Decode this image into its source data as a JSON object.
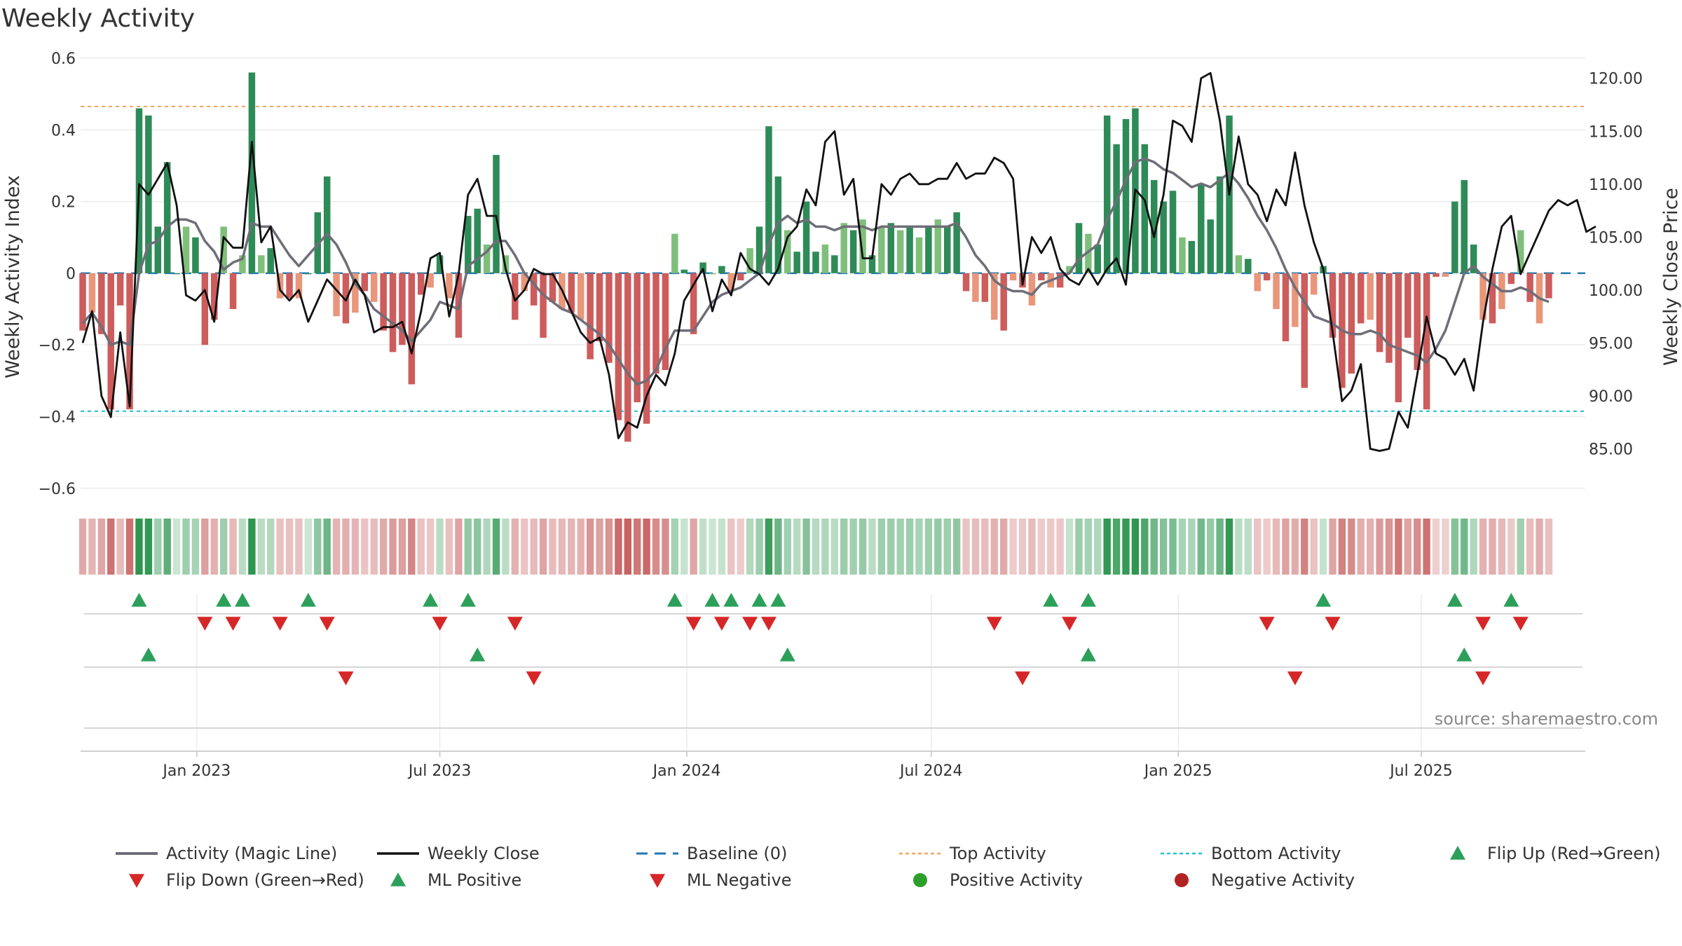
{
  "chart_data": {
    "type": "bar",
    "title": "Weekly Activity",
    "ylabel_left": "Weekly Activity Index",
    "ylabel_right": "Weekly Close Price",
    "ylim_left": [
      -0.62,
      0.6
    ],
    "ylim_right": [
      80.6,
      121.9
    ],
    "left_ticks": [
      "0.6",
      "0.4",
      "0.2",
      "0",
      "−0.2",
      "−0.4",
      "−0.6"
    ],
    "right_ticks": [
      "120.00",
      "115.00",
      "110.00",
      "105.00",
      "100.00",
      "95.00",
      "90.00",
      "85.00"
    ],
    "x_ticks": [
      "Jan 2023",
      "Jul 2023",
      "Jan 2024",
      "Jul 2024",
      "Jan 2025",
      "Jul 2025"
    ],
    "start_week": "2022-10-08",
    "top_activity": 0.465,
    "bottom_activity": -0.385,
    "baseline": 0,
    "activity": [
      -0.16,
      -0.11,
      -0.17,
      -0.38,
      -0.09,
      -0.38,
      0.46,
      0.44,
      0.13,
      0.31,
      0.0,
      0.13,
      0.1,
      -0.2,
      -0.13,
      0.13,
      -0.1,
      0.05,
      0.56,
      0.05,
      0.07,
      -0.07,
      -0.07,
      -0.07,
      0.0,
      0.17,
      0.27,
      -0.12,
      -0.14,
      -0.11,
      -0.05,
      -0.08,
      -0.16,
      -0.22,
      -0.2,
      -0.31,
      -0.06,
      -0.04,
      0.05,
      -0.07,
      -0.18,
      0.16,
      0.18,
      0.08,
      0.33,
      0.05,
      -0.13,
      -0.05,
      -0.09,
      -0.18,
      -0.08,
      -0.1,
      -0.11,
      -0.13,
      -0.24,
      -0.19,
      -0.25,
      -0.41,
      -0.47,
      -0.36,
      -0.42,
      -0.28,
      -0.27,
      0.11,
      0.01,
      -0.17,
      0.03,
      0.0,
      0.02,
      -0.05,
      -0.02,
      0.07,
      0.13,
      0.41,
      0.27,
      0.12,
      0.06,
      0.2,
      0.06,
      0.08,
      0.05,
      0.14,
      0.12,
      0.15,
      0.05,
      0.13,
      0.14,
      0.12,
      0.13,
      0.1,
      0.13,
      0.15,
      0.13,
      0.17,
      -0.05,
      -0.08,
      -0.08,
      -0.13,
      -0.16,
      -0.02,
      -0.04,
      -0.09,
      -0.02,
      -0.04,
      -0.04,
      0.02,
      0.14,
      0.11,
      0.08,
      0.44,
      0.36,
      0.43,
      0.46,
      0.36,
      0.26,
      0.2,
      0.23,
      0.1,
      0.09,
      0.25,
      0.15,
      0.27,
      0.44,
      0.05,
      0.04,
      -0.05,
      -0.02,
      -0.1,
      -0.19,
      -0.15,
      -0.32,
      -0.06,
      0.02,
      -0.18,
      -0.32,
      -0.28,
      -0.14,
      -0.13,
      -0.22,
      -0.25,
      -0.36,
      -0.18,
      -0.27,
      -0.38,
      -0.01,
      -0.01,
      0.2,
      0.26,
      0.08,
      -0.13,
      -0.14,
      -0.1,
      -0.03,
      0.12,
      -0.08,
      -0.14,
      -0.07
    ],
    "magic_line": [
      -0.14,
      -0.11,
      -0.15,
      -0.2,
      -0.19,
      -0.2,
      0.0,
      0.08,
      0.09,
      0.13,
      0.15,
      0.15,
      0.14,
      0.09,
      0.06,
      0.01,
      0.03,
      0.04,
      0.14,
      0.13,
      0.13,
      0.09,
      0.05,
      0.02,
      0.05,
      0.08,
      0.11,
      0.08,
      0.03,
      -0.03,
      -0.06,
      -0.1,
      -0.12,
      -0.14,
      -0.16,
      -0.19,
      -0.16,
      -0.13,
      -0.08,
      -0.09,
      -0.1,
      0.02,
      0.04,
      0.06,
      0.09,
      0.09,
      0.05,
      0.0,
      -0.03,
      -0.06,
      -0.08,
      -0.1,
      -0.11,
      -0.13,
      -0.15,
      -0.17,
      -0.2,
      -0.24,
      -0.28,
      -0.31,
      -0.3,
      -0.27,
      -0.21,
      -0.16,
      -0.16,
      -0.16,
      -0.12,
      -0.08,
      -0.06,
      -0.05,
      -0.04,
      -0.02,
      0.0,
      0.08,
      0.14,
      0.16,
      0.14,
      0.15,
      0.13,
      0.13,
      0.12,
      0.13,
      0.13,
      0.13,
      0.12,
      0.13,
      0.13,
      0.13,
      0.13,
      0.13,
      0.13,
      0.13,
      0.13,
      0.14,
      0.1,
      0.05,
      0.02,
      -0.02,
      -0.04,
      -0.05,
      -0.05,
      -0.06,
      -0.03,
      -0.02,
      -0.01,
      0.0,
      0.04,
      0.06,
      0.08,
      0.15,
      0.2,
      0.26,
      0.31,
      0.32,
      0.31,
      0.29,
      0.28,
      0.26,
      0.24,
      0.25,
      0.24,
      0.26,
      0.28,
      0.25,
      0.21,
      0.16,
      0.12,
      0.07,
      0.01,
      -0.04,
      -0.08,
      -0.12,
      -0.13,
      -0.14,
      -0.16,
      -0.17,
      -0.17,
      -0.16,
      -0.17,
      -0.2,
      -0.21,
      -0.22,
      -0.23,
      -0.25,
      -0.21,
      -0.16,
      -0.08,
      0.0,
      0.02,
      -0.01,
      -0.03,
      -0.05,
      -0.05,
      -0.04,
      -0.05,
      -0.07,
      -0.08
    ],
    "weekly_close": [
      95.0,
      98.0,
      90.0,
      88.0,
      96.0,
      89.0,
      110.0,
      109.0,
      110.5,
      112.0,
      108.0,
      99.5,
      99.0,
      100.0,
      97.0,
      105.0,
      104.0,
      104.0,
      114.0,
      104.5,
      106.0,
      100.0,
      99.0,
      100.0,
      97.0,
      99.0,
      101.0,
      100.0,
      99.0,
      101.0,
      99.5,
      96.0,
      96.5,
      96.5,
      97.0,
      94.0,
      98.0,
      103.0,
      103.5,
      97.5,
      101.5,
      109.0,
      110.5,
      107.0,
      107.0,
      102.0,
      99.0,
      100.0,
      102.0,
      101.5,
      101.5,
      100.0,
      98.0,
      96.0,
      95.0,
      95.5,
      92.0,
      86.0,
      87.5,
      87.0,
      90.0,
      92.0,
      91.0,
      94.0,
      99.0,
      100.5,
      102.0,
      98.0,
      101.0,
      99.5,
      103.5,
      102.0,
      101.5,
      100.5,
      102.0,
      105.0,
      106.0,
      109.5,
      108.0,
      114.0,
      115.0,
      109.0,
      110.5,
      103.0,
      103.0,
      110.0,
      109.0,
      110.5,
      111.0,
      110.0,
      110.0,
      110.5,
      110.5,
      112.0,
      110.5,
      111.0,
      111.0,
      112.5,
      112.0,
      110.5,
      100.5,
      105.0,
      103.5,
      105.0,
      102.0,
      101.0,
      100.5,
      102.0,
      100.5,
      102.0,
      103.0,
      100.5,
      109.5,
      108.5,
      105.0,
      109.0,
      116.0,
      115.5,
      114.0,
      120.0,
      120.5,
      116.0,
      109.0,
      114.5,
      110.0,
      109.0,
      106.5,
      109.5,
      108.0,
      113.0,
      108.0,
      104.5,
      102.0,
      96.0,
      89.5,
      90.5,
      93.0,
      85.0,
      84.8,
      85.0,
      88.5,
      87.0,
      92.0,
      97.5,
      94.0,
      93.5,
      92.0,
      93.5,
      90.5,
      97.0,
      102.0,
      106.0,
      107.0,
      101.5,
      103.5,
      105.5,
      107.5,
      108.5,
      108.0,
      108.5,
      105.5,
      106.0
    ],
    "heat_strip_values": "same as activity",
    "flip_up_weeks": [
      6,
      15,
      17,
      24,
      37,
      41,
      63,
      67,
      69,
      72,
      74,
      103,
      107,
      132,
      146,
      152
    ],
    "flip_down_weeks": [
      13,
      16,
      21,
      26,
      38,
      46,
      65,
      68,
      71,
      73,
      97,
      105,
      126,
      133,
      149,
      153
    ],
    "ml_positive_weeks": [
      7,
      42,
      75,
      107,
      147
    ],
    "ml_negative_weeks": [
      28,
      48,
      100,
      129,
      149
    ],
    "source": "source: sharemaestro.com",
    "legend": [
      "Activity (Magic Line)",
      "Weekly Close",
      "Baseline (0)",
      "Top Activity",
      "Bottom Activity",
      "Flip Up (Red→Green)",
      "Flip Down (Green→Red)",
      "ML Positive",
      "ML Negative",
      "Positive Activity",
      "Negative Activity"
    ]
  },
  "colors": {
    "pos_strong": "#2e8b57",
    "pos_light": "#7fbf7b",
    "neg_strong": "#cd5c5c",
    "neg_light": "#e9967a",
    "magic_line": "#6e6e78",
    "close": "#111111",
    "baseline": "#1f77b4",
    "top": "#f4a460",
    "bottom": "#22c3d6",
    "flip_up": "#2ca05a",
    "flip_down": "#d62728",
    "pos_dot": "#2ca02c",
    "neg_dot": "#b22222"
  }
}
